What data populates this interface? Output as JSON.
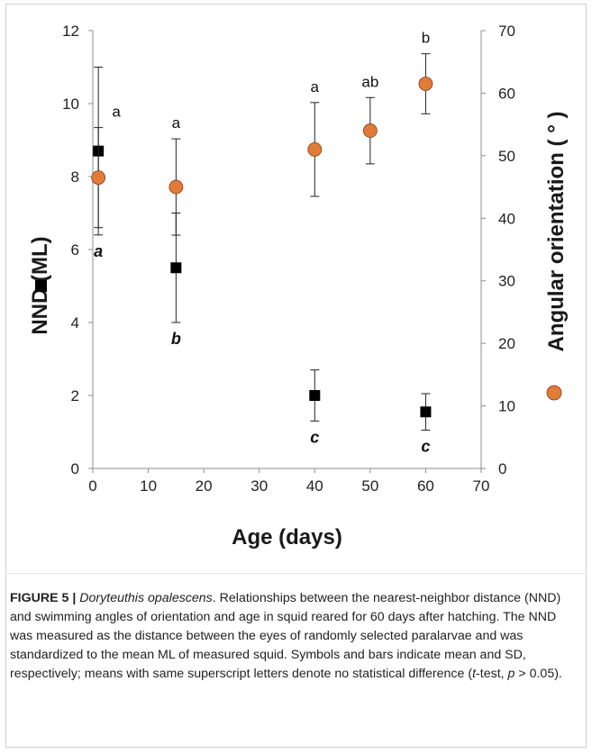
{
  "chart_data": {
    "type": "scatter",
    "xlabel": "Age (days)",
    "xlim": [
      0,
      70
    ],
    "xticks": [
      0,
      10,
      20,
      30,
      40,
      50,
      60,
      70
    ],
    "left_axis": {
      "label": "NND (ML)",
      "ylim": [
        0,
        12
      ],
      "yticks": [
        0,
        2,
        4,
        6,
        8,
        10,
        12
      ],
      "marker": "square",
      "color": "#000000"
    },
    "right_axis": {
      "label": "Angular orientation ( ° )",
      "ylim": [
        0,
        70
      ],
      "yticks": [
        0,
        10,
        20,
        30,
        40,
        50,
        60,
        70
      ],
      "marker": "circle",
      "color": "#E07B39"
    },
    "series": [
      {
        "axis": "left",
        "marker": "square",
        "x": [
          1,
          15,
          40,
          60
        ],
        "y": [
          8.7,
          5.5,
          2.0,
          1.55
        ],
        "sd": [
          2.3,
          1.5,
          0.7,
          0.5
        ],
        "letters": [
          "a",
          "b",
          "c",
          "c"
        ]
      },
      {
        "axis": "right",
        "marker": "circle",
        "x": [
          1,
          15,
          40,
          50,
          60
        ],
        "y": [
          46.5,
          45.0,
          51.0,
          54.0,
          61.5
        ],
        "sd": [
          8.0,
          7.7,
          7.5,
          5.3,
          4.8
        ],
        "letters": [
          "a",
          "a",
          "a",
          "ab",
          "b"
        ]
      }
    ]
  },
  "caption": {
    "label": "FIGURE 5 |",
    "species": "Doryteuthis opalescens",
    "text_1": ". Relationships between the nearest-neighbor distance (NND) and swimming angles of orientation and age in squid reared for 60 days after hatching. The NND was measured as the distance between the eyes of randomly selected paralarvae and was standardized to the mean ML of measured squid. Symbols and bars indicate mean and SD, respectively; means with same superscript letters denote no statistical difference (",
    "t_italic": "t",
    "text_2": "-test, ",
    "p_italic": "p",
    "text_3": " > 0.05)."
  }
}
